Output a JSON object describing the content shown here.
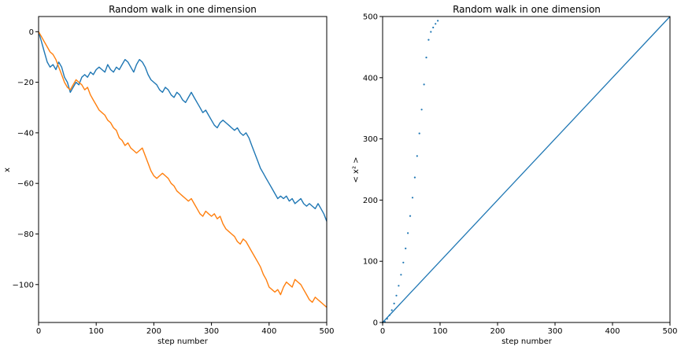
{
  "chart_data": [
    {
      "type": "line",
      "title": "Random walk in one dimension",
      "xlabel": "step number",
      "ylabel": "x",
      "xlim": [
        0,
        500
      ],
      "ylim": [
        -115,
        6
      ],
      "xticks": [
        0,
        100,
        200,
        300,
        400,
        500
      ],
      "yticks": [
        0,
        -20,
        -40,
        -60,
        -80,
        -100
      ],
      "grid": false,
      "series": [
        {
          "color": "#1f77b4",
          "x": [
            0,
            5,
            10,
            15,
            20,
            25,
            30,
            35,
            40,
            45,
            50,
            55,
            60,
            65,
            70,
            75,
            80,
            85,
            90,
            95,
            100,
            105,
            110,
            115,
            120,
            125,
            130,
            135,
            140,
            145,
            150,
            155,
            160,
            165,
            170,
            175,
            180,
            185,
            190,
            195,
            200,
            205,
            210,
            215,
            220,
            225,
            230,
            235,
            240,
            245,
            250,
            255,
            260,
            265,
            270,
            275,
            280,
            285,
            290,
            295,
            300,
            305,
            310,
            315,
            320,
            325,
            330,
            335,
            340,
            345,
            350,
            355,
            360,
            365,
            370,
            375,
            380,
            385,
            390,
            395,
            400,
            405,
            410,
            415,
            420,
            425,
            430,
            435,
            440,
            445,
            450,
            455,
            460,
            465,
            470,
            475,
            480,
            485,
            490,
            495,
            500
          ],
          "y": [
            0,
            -4,
            -8,
            -12,
            -14,
            -13,
            -15,
            -12,
            -14,
            -18,
            -20,
            -24,
            -22,
            -20,
            -21,
            -18,
            -17,
            -18,
            -16,
            -17,
            -15,
            -14,
            -15,
            -16,
            -13,
            -15,
            -16,
            -14,
            -15,
            -13,
            -11,
            -12,
            -14,
            -16,
            -13,
            -11,
            -12,
            -14,
            -17,
            -19,
            -20,
            -21,
            -23,
            -24,
            -22,
            -23,
            -25,
            -26,
            -24,
            -25,
            -27,
            -28,
            -26,
            -24,
            -26,
            -28,
            -30,
            -32,
            -31,
            -33,
            -35,
            -37,
            -38,
            -36,
            -35,
            -36,
            -37,
            -38,
            -39,
            -38,
            -40,
            -41,
            -40,
            -42,
            -45,
            -48,
            -51,
            -54,
            -56,
            -58,
            -60,
            -62,
            -64,
            -66,
            -65,
            -66,
            -65,
            -67,
            -66,
            -68,
            -67,
            -66,
            -68,
            -69,
            -68,
            -69,
            -70,
            -68,
            -70,
            -72,
            -75
          ]
        },
        {
          "color": "#ff7f0e",
          "x": [
            0,
            5,
            10,
            15,
            20,
            25,
            30,
            35,
            40,
            45,
            50,
            55,
            60,
            65,
            70,
            75,
            80,
            85,
            90,
            95,
            100,
            105,
            110,
            115,
            120,
            125,
            130,
            135,
            140,
            145,
            150,
            155,
            160,
            165,
            170,
            175,
            180,
            185,
            190,
            195,
            200,
            205,
            210,
            215,
            220,
            225,
            230,
            235,
            240,
            245,
            250,
            255,
            260,
            265,
            270,
            275,
            280,
            285,
            290,
            295,
            300,
            305,
            310,
            315,
            320,
            325,
            330,
            335,
            340,
            345,
            350,
            355,
            360,
            365,
            370,
            375,
            380,
            385,
            390,
            395,
            400,
            405,
            410,
            415,
            420,
            425,
            430,
            435,
            440,
            445,
            450,
            455,
            460,
            465,
            470,
            475,
            480,
            485,
            490,
            495,
            500
          ],
          "y": [
            0,
            -2,
            -4,
            -6,
            -8,
            -9,
            -11,
            -14,
            -17,
            -20,
            -22,
            -23,
            -21,
            -19,
            -20,
            -21,
            -23,
            -22,
            -25,
            -27,
            -29,
            -31,
            -32,
            -33,
            -35,
            -36,
            -38,
            -39,
            -42,
            -43,
            -45,
            -44,
            -46,
            -47,
            -48,
            -47,
            -46,
            -49,
            -52,
            -55,
            -57,
            -58,
            -57,
            -56,
            -57,
            -58,
            -60,
            -61,
            -63,
            -64,
            -65,
            -66,
            -67,
            -66,
            -68,
            -70,
            -72,
            -73,
            -71,
            -72,
            -73,
            -72,
            -74,
            -73,
            -76,
            -78,
            -79,
            -80,
            -81,
            -83,
            -84,
            -82,
            -83,
            -85,
            -87,
            -89,
            -91,
            -93,
            -96,
            -98,
            -101,
            -102,
            -103,
            -102,
            -104,
            -101,
            -99,
            -100,
            -101,
            -98,
            -99,
            -100,
            -102,
            -104,
            -106,
            -107,
            -105,
            -106,
            -107,
            -108,
            -109
          ]
        }
      ]
    },
    {
      "type": "scatter",
      "title": "Random walk in one dimension",
      "xlabel": "step number",
      "ylabel": "< x² >",
      "xlim": [
        0,
        500
      ],
      "ylim": [
        0,
        500
      ],
      "xticks": [
        0,
        100,
        200,
        300,
        400,
        500
      ],
      "yticks": [
        0,
        100,
        200,
        300,
        400,
        500
      ],
      "grid": false,
      "reference_line": {
        "color": "#1f77b4",
        "x": [
          0,
          500
        ],
        "y": [
          0,
          500
        ]
      },
      "series": [
        {
          "color": "#1f77b4",
          "x": [
            0,
            4,
            8,
            12,
            16,
            20,
            24,
            28,
            32,
            36,
            40,
            44,
            48,
            52,
            56,
            60,
            64,
            68,
            72,
            76,
            80,
            84,
            88,
            92,
            96
          ],
          "y": [
            0,
            1,
            6,
            12,
            20,
            31,
            44,
            60,
            78,
            98,
            121,
            146,
            174,
            204,
            237,
            272,
            309,
            348,
            389,
            433,
            462,
            475,
            482,
            488,
            493
          ]
        }
      ]
    }
  ]
}
